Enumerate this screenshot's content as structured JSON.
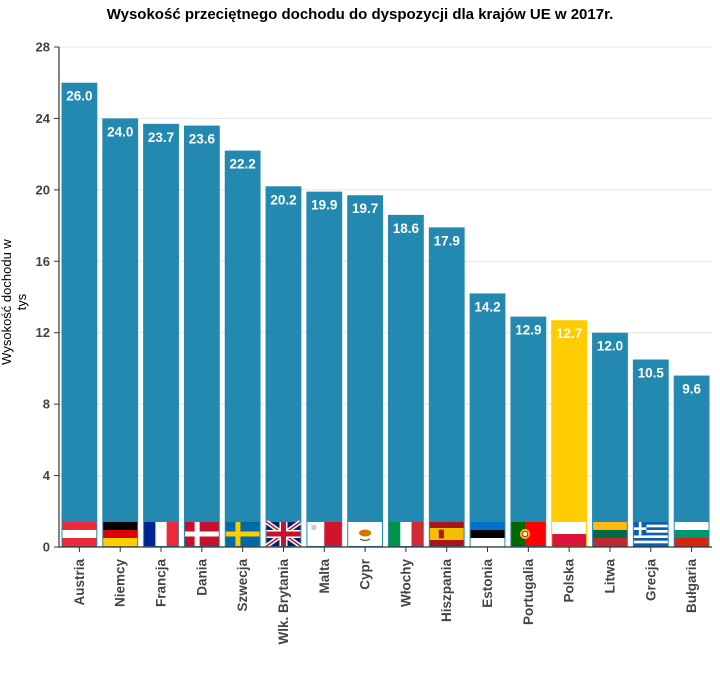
{
  "chart_data": {
    "type": "bar",
    "title": "Wysokość przeciętnego dochodu do dyspozycji dla krajów UE w 2017r.",
    "xlabel": "",
    "ylabel": "Wysokość dochodu w tys",
    "ylim": [
      0,
      28
    ],
    "yticks": [
      0,
      4,
      8,
      12,
      16,
      20,
      24,
      28
    ],
    "grid": true,
    "categories": [
      "Austria",
      "Niemcy",
      "Francja",
      "Dania",
      "Szwecja",
      "Wlk. Brytania",
      "Malta",
      "Cypr",
      "Włochy",
      "Hiszpania",
      "Estonia",
      "Portugalia",
      "Polska",
      "Litwa",
      "Grecja",
      "Bułgaria"
    ],
    "values": [
      26.0,
      24.0,
      23.7,
      23.6,
      22.2,
      20.2,
      19.9,
      19.7,
      18.6,
      17.9,
      14.2,
      12.9,
      12.7,
      12.0,
      10.5,
      9.6
    ],
    "value_labels": [
      "26.0",
      "24.0",
      "23.7",
      "23.6",
      "22.2",
      "20.2",
      "19.9",
      "19.7",
      "18.6",
      "17.9",
      "14.2",
      "12.9",
      "12.7",
      "12.0",
      "10.5",
      "9.6"
    ],
    "bar_color": "#2389b0",
    "highlight": {
      "category": "Polska",
      "color": "#ffcc00"
    },
    "flags": [
      "austria-flag",
      "germany-flag",
      "france-flag",
      "denmark-flag",
      "sweden-flag",
      "uk-flag",
      "malta-flag",
      "cyprus-flag",
      "italy-flag",
      "spain-flag",
      "estonia-flag",
      "portugal-flag",
      "poland-flag",
      "lithuania-flag",
      "greece-flag",
      "bulgaria-flag"
    ]
  }
}
